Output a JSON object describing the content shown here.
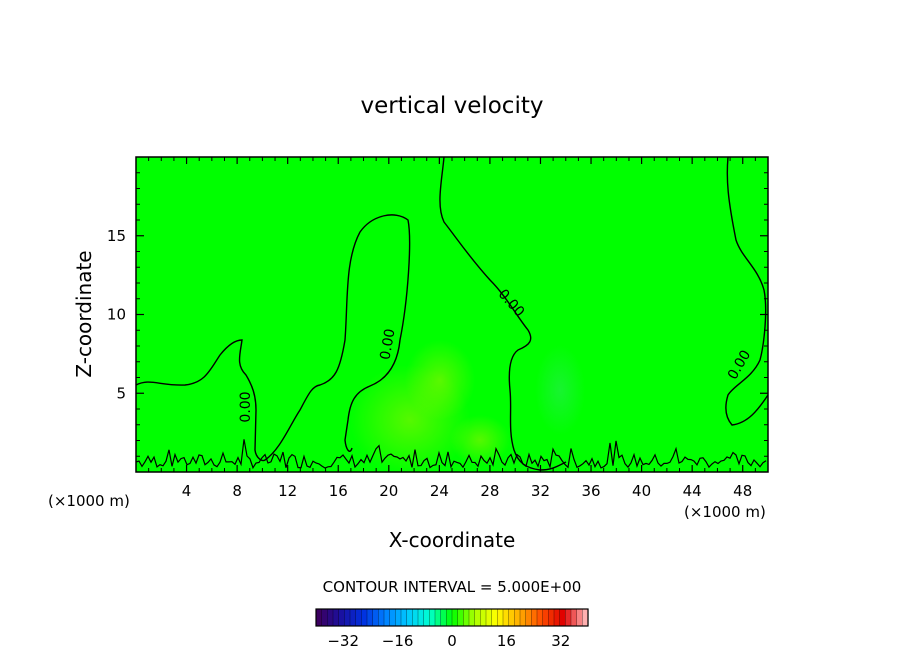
{
  "chart_data": {
    "type": "heatmap",
    "title": "vertical velocity",
    "xlabel": "X-coordinate",
    "ylabel": "Z-coordinate",
    "x_unit": "(×1000 m)",
    "y_unit": "(×1000 m)",
    "xlim": [
      0,
      50
    ],
    "ylim": [
      0,
      20
    ],
    "xticks": [
      4,
      8,
      12,
      16,
      20,
      24,
      28,
      32,
      36,
      40,
      44,
      48
    ],
    "yticks": [
      5,
      10,
      15
    ],
    "contour_labels": [
      "0.00",
      "0.00",
      "0.00",
      "0.00"
    ],
    "contour_interval_text": "CONTOUR INTERVAL = 5.000E+00",
    "colorbar": {
      "min": -40,
      "max": 40,
      "ticks": [
        -32,
        -16,
        0,
        16,
        32
      ],
      "tick_labels": [
        "−32",
        "−16",
        "0",
        "16",
        "32"
      ]
    },
    "field_value_range": [
      -5,
      5
    ],
    "grid": false,
    "background_color": "#00ff00",
    "colormap": [
      "#3b0060",
      "#1a10a0",
      "#0030e0",
      "#0080ff",
      "#00c8ff",
      "#00ffd0",
      "#00ff00",
      "#a8ff00",
      "#ffff00",
      "#ffb000",
      "#ff5000",
      "#e00000",
      "#ffb0b0"
    ]
  }
}
